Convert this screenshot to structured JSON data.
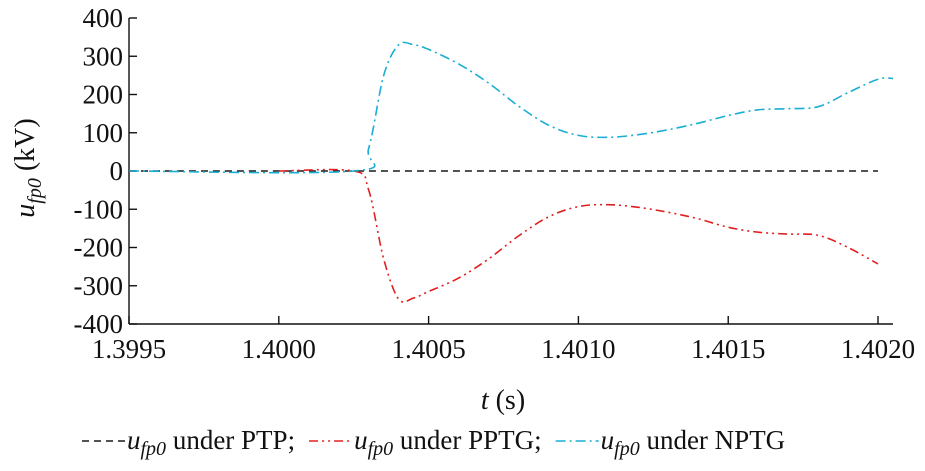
{
  "chart_data": {
    "type": "line",
    "title": "",
    "xlabel": {
      "var": "t",
      "unit": " (s)"
    },
    "ylabel": {
      "var": "u",
      "sub": "fp0",
      "unit": " (kV)"
    },
    "xlim": [
      1.3995,
      1.40205
    ],
    "ylim": [
      -400,
      400
    ],
    "xticks": [
      1.3995,
      1.4,
      1.4005,
      1.401,
      1.4015,
      1.402
    ],
    "xtick_labels": [
      "1.3995",
      "1.4000",
      "1.4005",
      "1.4010",
      "1.4015",
      "1.4020"
    ],
    "yticks": [
      400,
      300,
      200,
      100,
      0,
      -100,
      -200,
      -300,
      -400
    ],
    "ytick_labels": [
      "400",
      "300",
      "200",
      "100",
      "0",
      "-100",
      "-200",
      "-300",
      "-400"
    ],
    "grid": false,
    "legend_position": "bottom",
    "series": [
      {
        "name": "u_fp0 under PTP",
        "label_parts": {
          "var": "u",
          "sub": "fp0",
          "rest": " under PTP;"
        },
        "color": "#1a1a1a",
        "dash": "7,5",
        "x": [
          1.3995,
          1.402
        ],
        "y": [
          0,
          0
        ]
      },
      {
        "name": "u_fp0 under PPTG",
        "label_parts": {
          "var": "u",
          "sub": "fp0",
          "rest": " under PPTG;"
        },
        "color": "#e02020",
        "dash": "9,4,2,4,2,4",
        "x": [
          1.4,
          1.40025,
          1.4003,
          1.40035,
          1.4004,
          1.40045,
          1.4005,
          1.4006,
          1.4007,
          1.4008,
          1.4009,
          1.401,
          1.4011,
          1.4012,
          1.4013,
          1.4014,
          1.4015,
          1.4016,
          1.4017,
          1.4018,
          1.4019,
          1.402
        ],
        "y": [
          0,
          0,
          -50,
          -230,
          -335,
          -332,
          -315,
          -280,
          -230,
          -170,
          -120,
          -93,
          -88,
          -95,
          -108,
          -125,
          -147,
          -160,
          -165,
          -168,
          -200,
          -243
        ]
      },
      {
        "name": "u_fp0 under NPTG",
        "label_parts": {
          "var": "u",
          "sub": "fp0",
          "rest": " under NPTG"
        },
        "color": "#1aaed4",
        "dash": "10,4,2,4",
        "x": [
          1.3995,
          1.40025,
          1.4003,
          1.40035,
          1.4004,
          1.40045,
          1.4005,
          1.4006,
          1.4007,
          1.4008,
          1.4009,
          1.401,
          1.4011,
          1.4012,
          1.4013,
          1.4014,
          1.4015,
          1.4016,
          1.4017,
          1.4018,
          1.4019,
          1.402,
          1.40205
        ],
        "y": [
          0,
          0,
          60,
          250,
          330,
          330,
          318,
          280,
          230,
          170,
          120,
          93,
          88,
          95,
          108,
          125,
          145,
          160,
          163,
          168,
          205,
          240,
          242
        ]
      }
    ]
  }
}
